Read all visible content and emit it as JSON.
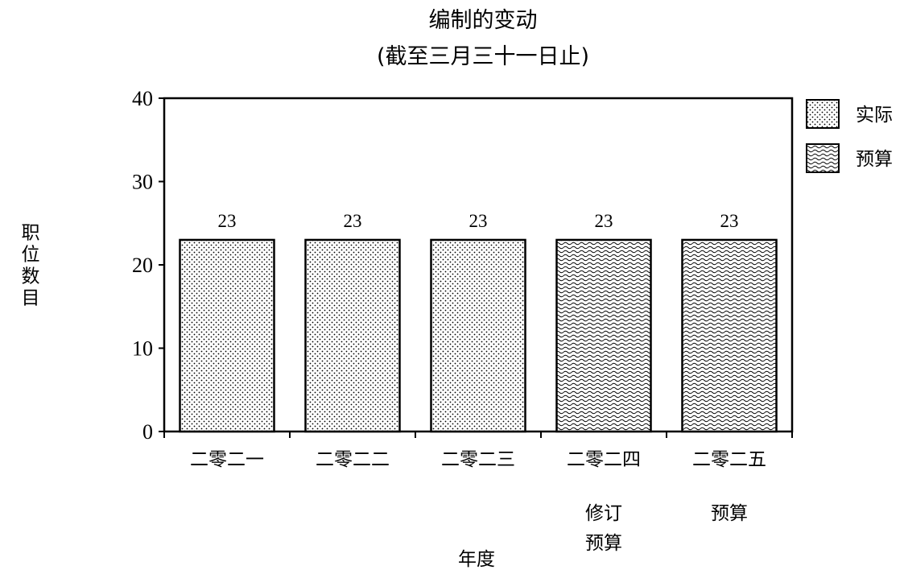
{
  "chart_data": {
    "type": "bar",
    "title": "编制的变动",
    "subtitle": "(截至三月三十一日止)",
    "xlabel": "年度",
    "ylabel": "职位数目",
    "ylim": [
      0,
      40
    ],
    "yticks": [
      "0",
      "10",
      "20",
      "30",
      "40"
    ],
    "categories": [
      "二零二一",
      "二零二二",
      "二零二三",
      "二零二四",
      "二零二五"
    ],
    "category_notes": [
      "",
      "",
      "",
      "修订\n预算",
      "预算"
    ],
    "series": [
      {
        "name": "实际",
        "pattern": "dots",
        "values": [
          23,
          23,
          23,
          null,
          null
        ]
      },
      {
        "name": "预算",
        "pattern": "waves",
        "values": [
          null,
          null,
          null,
          23,
          23
        ]
      }
    ],
    "data_labels": [
      "23",
      "23",
      "23",
      "23",
      "23"
    ],
    "legend": {
      "position": "top-right",
      "entries": [
        "实际",
        "预算"
      ]
    },
    "grid": false,
    "colors": {
      "bar_fill": "#ffffff",
      "pattern": "#000000",
      "axis": "#000000"
    }
  }
}
